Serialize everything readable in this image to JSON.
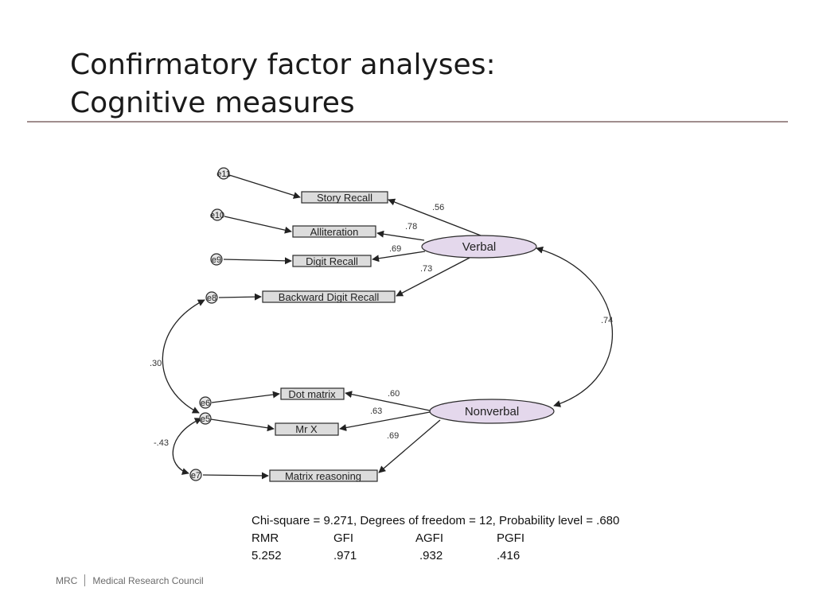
{
  "slide": {
    "title_line1": "Confirmatory factor analyses:",
    "title_line2": "Cognitive measures"
  },
  "diagram": {
    "latents": [
      {
        "id": "verbal",
        "label": "Verbal"
      },
      {
        "id": "nonverbal",
        "label": "Nonverbal"
      }
    ],
    "observed": [
      {
        "id": "story",
        "label": "Story Recall"
      },
      {
        "id": "allit",
        "label": "Alliteration"
      },
      {
        "id": "digit",
        "label": "Digit Recall"
      },
      {
        "id": "bdigit",
        "label": "Backward Digit Recall"
      },
      {
        "id": "dot",
        "label": "Dot matrix"
      },
      {
        "id": "mrx",
        "label": "Mr X"
      },
      {
        "id": "matrix",
        "label": "Matrix reasoning"
      }
    ],
    "errors": [
      {
        "id": "e_story",
        "label": "e11"
      },
      {
        "id": "e_allit",
        "label": "e10"
      },
      {
        "id": "e_digit",
        "label": "e9"
      },
      {
        "id": "e_bdigit",
        "label": "e8"
      },
      {
        "id": "e_dot",
        "label": "e6"
      },
      {
        "id": "e_mrx",
        "label": "e5"
      },
      {
        "id": "e_matrix",
        "label": "e7"
      }
    ],
    "loadings": {
      "story": ".56",
      "allit": ".78",
      "digit": ".69",
      "bdigit": ".73",
      "dot": ".60",
      "mrx": ".63",
      "matrix": ".69"
    },
    "correlations": {
      "verbal_nonverbal": ".74",
      "e8_e5": ".30",
      "e5_e7": "-.43"
    }
  },
  "fit": {
    "summary": "Chi-square = 9.271, Degrees of freedom = 12, Probability level = .680",
    "headers": [
      "RMR",
      "GFI",
      "AGFI",
      "PGFI"
    ],
    "values": [
      "5.252",
      ".971",
      ".932",
      ".416"
    ]
  },
  "footer": {
    "org_short": "MRC",
    "org_full": "Medical Research Council"
  }
}
